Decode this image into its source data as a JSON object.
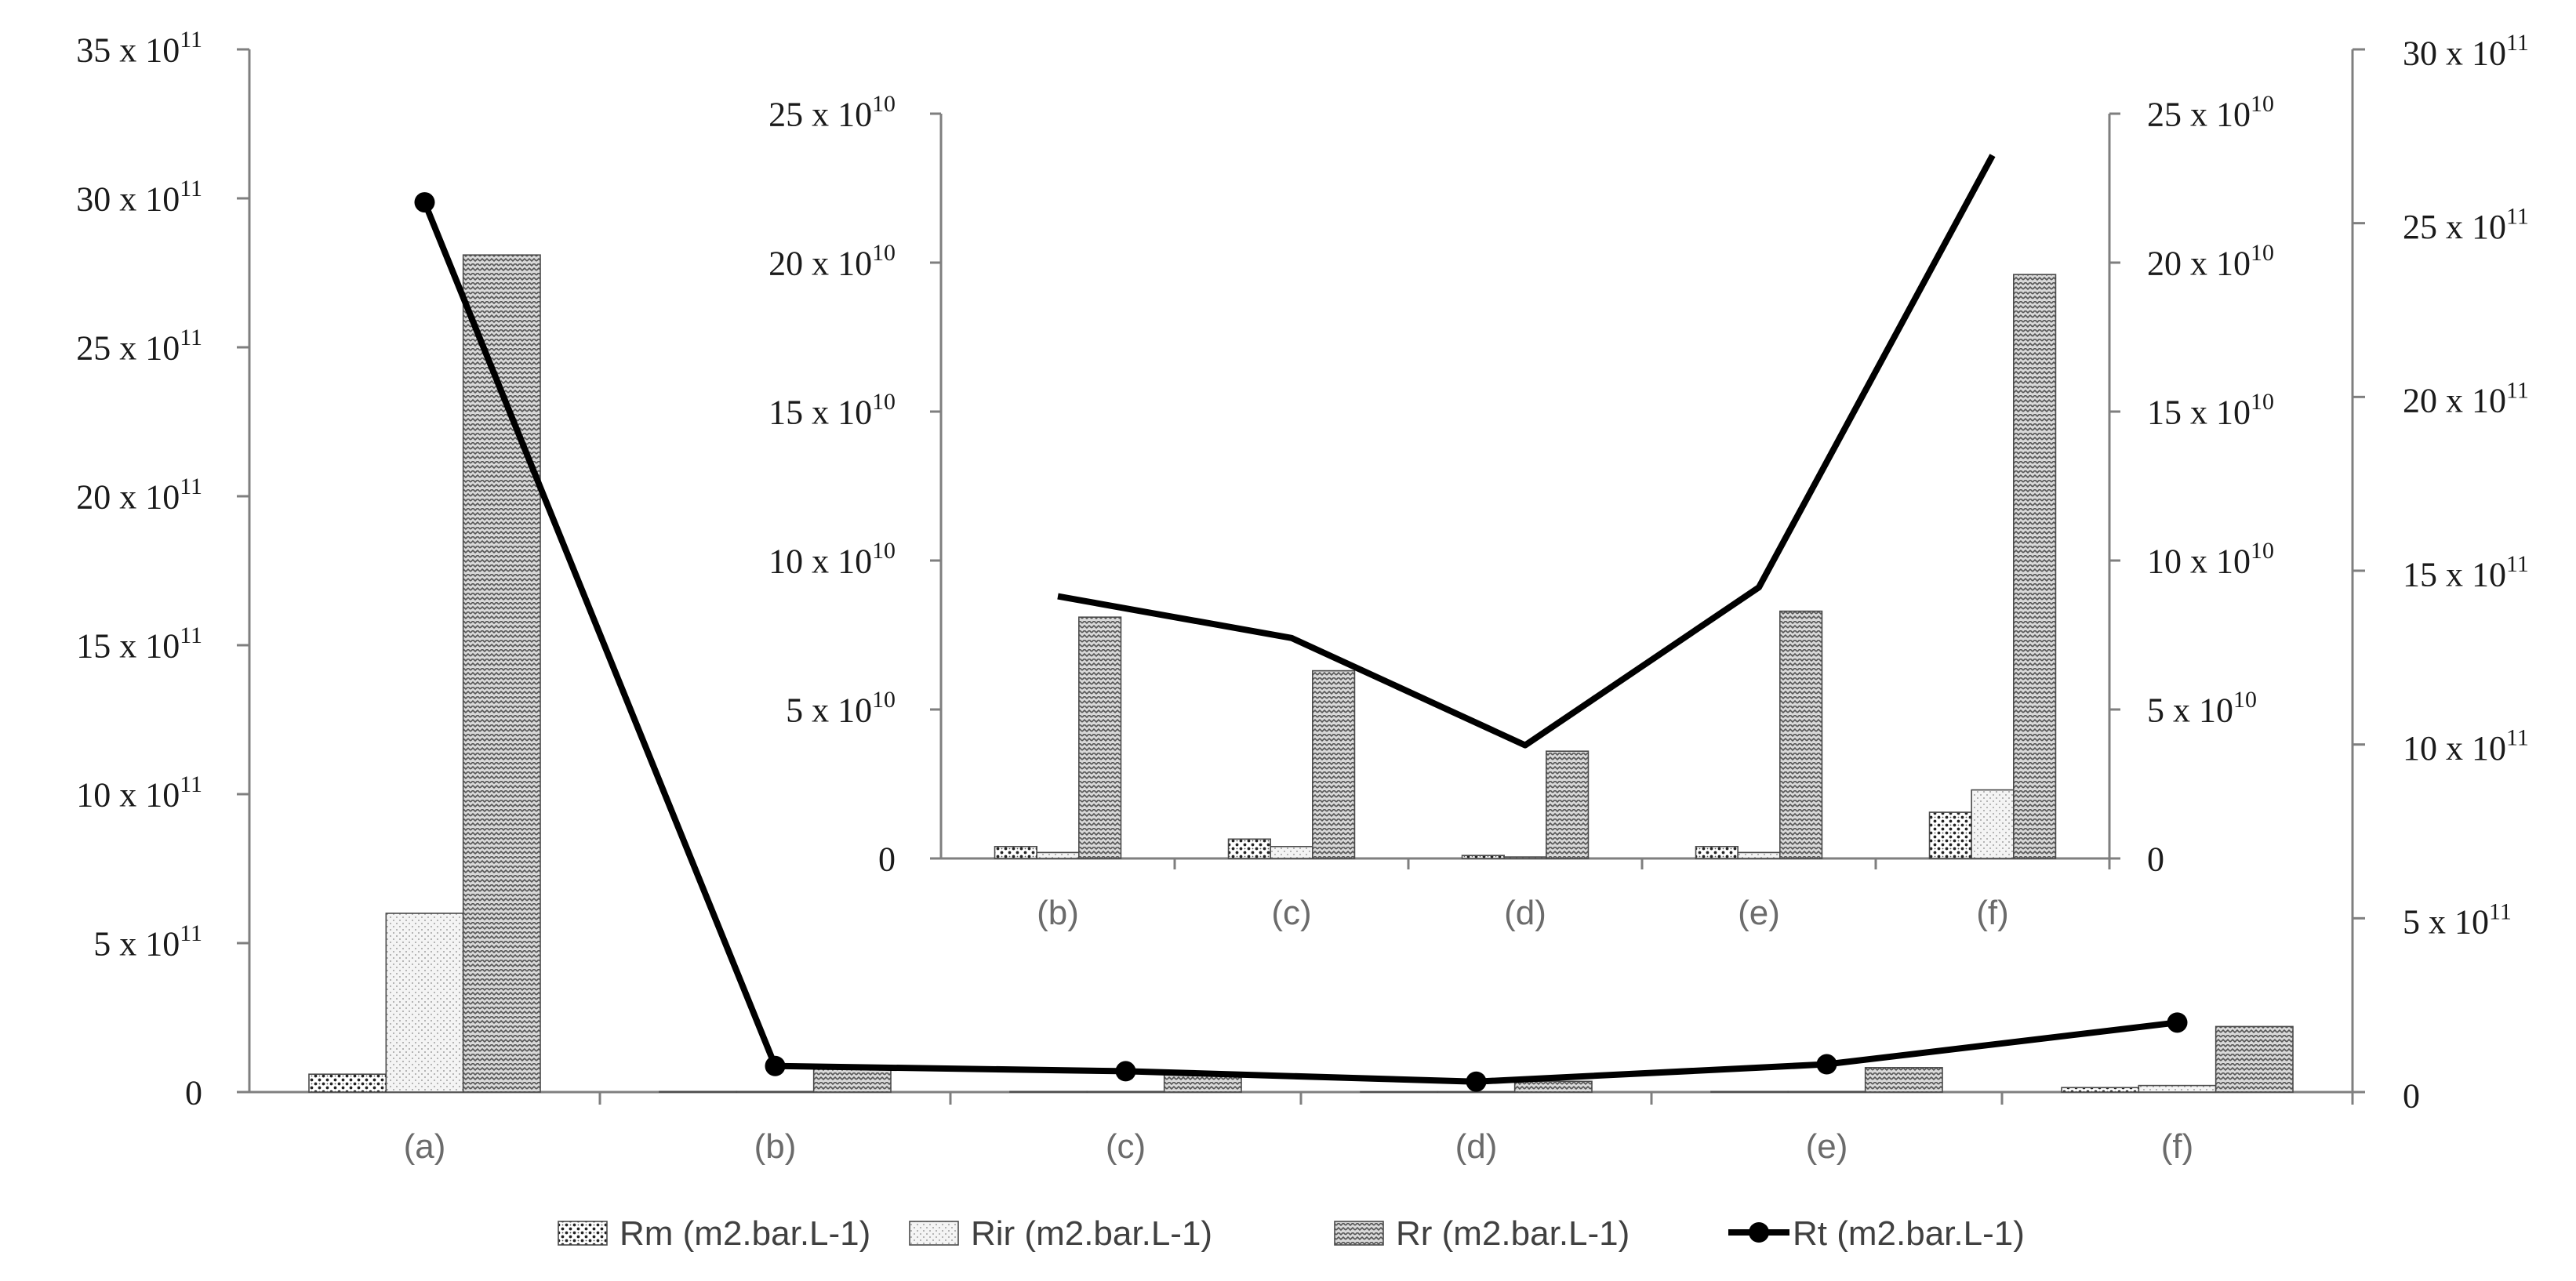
{
  "chart_data": [
    {
      "type": "bar",
      "role": "main",
      "categories": [
        "(a)",
        "(b)",
        "(c)",
        "(d)",
        "(e)",
        "(f)"
      ],
      "series": [
        {
          "name": "Rm (m2.bar.L-1)",
          "kind": "bar",
          "pattern": "dots",
          "axis": "left",
          "values": [
            60000000000.0,
            2000000000.0,
            2000000000.0,
            1000000000.0,
            2000000000.0,
            15000000000.0
          ]
        },
        {
          "name": "Rir (m2.bar.L-1)",
          "kind": "bar",
          "pattern": "stipple",
          "axis": "left",
          "values": [
            600000000000.0,
            2000000000.0,
            2000000000.0,
            1000000000.0,
            2000000000.0,
            22000000000.0
          ]
        },
        {
          "name": "Rr (m2.bar.L-1)",
          "kind": "bar",
          "pattern": "weave",
          "axis": "left",
          "values": [
            2810000000000.0,
            80000000000.0,
            63000000000.0,
            36000000000.0,
            82000000000.0,
            220000000000.0
          ]
        },
        {
          "name": "Rt (m2.bar.L-1)",
          "kind": "line",
          "marker": "circle",
          "axis": "right",
          "values": [
            2560000000000.0,
            75000000000.0,
            60000000000.0,
            30000000000.0,
            80000000000.0,
            200000000000.0
          ]
        }
      ],
      "y_left": {
        "min": 0,
        "max": 3500000000000.0,
        "ticks": [
          0,
          500000000000.0,
          1000000000000.0,
          1500000000000.0,
          2000000000000.0,
          2500000000000.0,
          3000000000000.0,
          3500000000000.0
        ],
        "tick_labels": [
          "0",
          "5 x 10",
          "10 x 10",
          "15 x 10",
          "20 x 10",
          "25 x 10",
          "30 x 10",
          "35 x 10"
        ],
        "exponent": "11"
      },
      "y_right": {
        "min": 0,
        "max": 3000000000000.0,
        "ticks": [
          0,
          500000000000.0,
          1000000000000.0,
          1500000000000.0,
          2000000000000.0,
          2500000000000.0,
          3000000000000.0
        ],
        "tick_labels": [
          "0",
          "5 x 10",
          "10 x 10",
          "15 x 10",
          "20 x 10",
          "25 x 10",
          "30 x 10"
        ],
        "exponent": "11"
      },
      "grid": false,
      "legend_position": "bottom"
    },
    {
      "type": "bar",
      "role": "inset",
      "categories": [
        "(b)",
        "(c)",
        "(d)",
        "(e)",
        "(f)"
      ],
      "series": [
        {
          "name": "Rm (m2.bar.L-1)",
          "kind": "bar",
          "pattern": "dots",
          "axis": "left",
          "values": [
            4000000000.0,
            6500000000.0,
            1000000000.0,
            4000000000.0,
            15500000000.0
          ]
        },
        {
          "name": "Rir (m2.bar.L-1)",
          "kind": "bar",
          "pattern": "stipple",
          "axis": "left",
          "values": [
            2000000000.0,
            4000000000.0,
            500000000.0,
            2000000000.0,
            23000000000.0
          ]
        },
        {
          "name": "Rr (m2.bar.L-1)",
          "kind": "bar",
          "pattern": "weave",
          "axis": "left",
          "values": [
            81000000000.0,
            63000000000.0,
            36000000000.0,
            83000000000.0,
            196000000000.0
          ]
        },
        {
          "name": "Rt (m2.bar.L-1)",
          "kind": "line",
          "marker": "none",
          "axis": "right",
          "values": [
            88000000000.0,
            74000000000.0,
            38000000000.0,
            91000000000.0,
            236000000000.0
          ]
        }
      ],
      "y_left": {
        "min": 0,
        "max": 250000000000.0,
        "ticks": [
          0,
          50000000000.0,
          100000000000.0,
          150000000000.0,
          200000000000.0,
          250000000000.0
        ],
        "tick_labels": [
          "0",
          "5 x 10",
          "10 x 10",
          "15 x 10",
          "20 x 10",
          "25 x 10"
        ],
        "exponent": "10"
      },
      "y_right": {
        "min": 0,
        "max": 250000000000.0,
        "ticks": [
          0,
          50000000000.0,
          100000000000.0,
          150000000000.0,
          200000000000.0,
          250000000000.0
        ],
        "tick_labels": [
          "0",
          "5 x 10",
          "10 x 10",
          "15 x 10",
          "20 x 10",
          "25 x 10"
        ],
        "exponent": "10"
      },
      "grid": false
    }
  ],
  "colors": {
    "axis": "#7f7f7f",
    "bar_edge": "#4a4a4a",
    "bar_fill": "#dcdcdc",
    "pattern_ink": "#3a3a3a",
    "line": "#000000",
    "text": "#1a1a1a",
    "category_text": "#6b6b6b"
  }
}
